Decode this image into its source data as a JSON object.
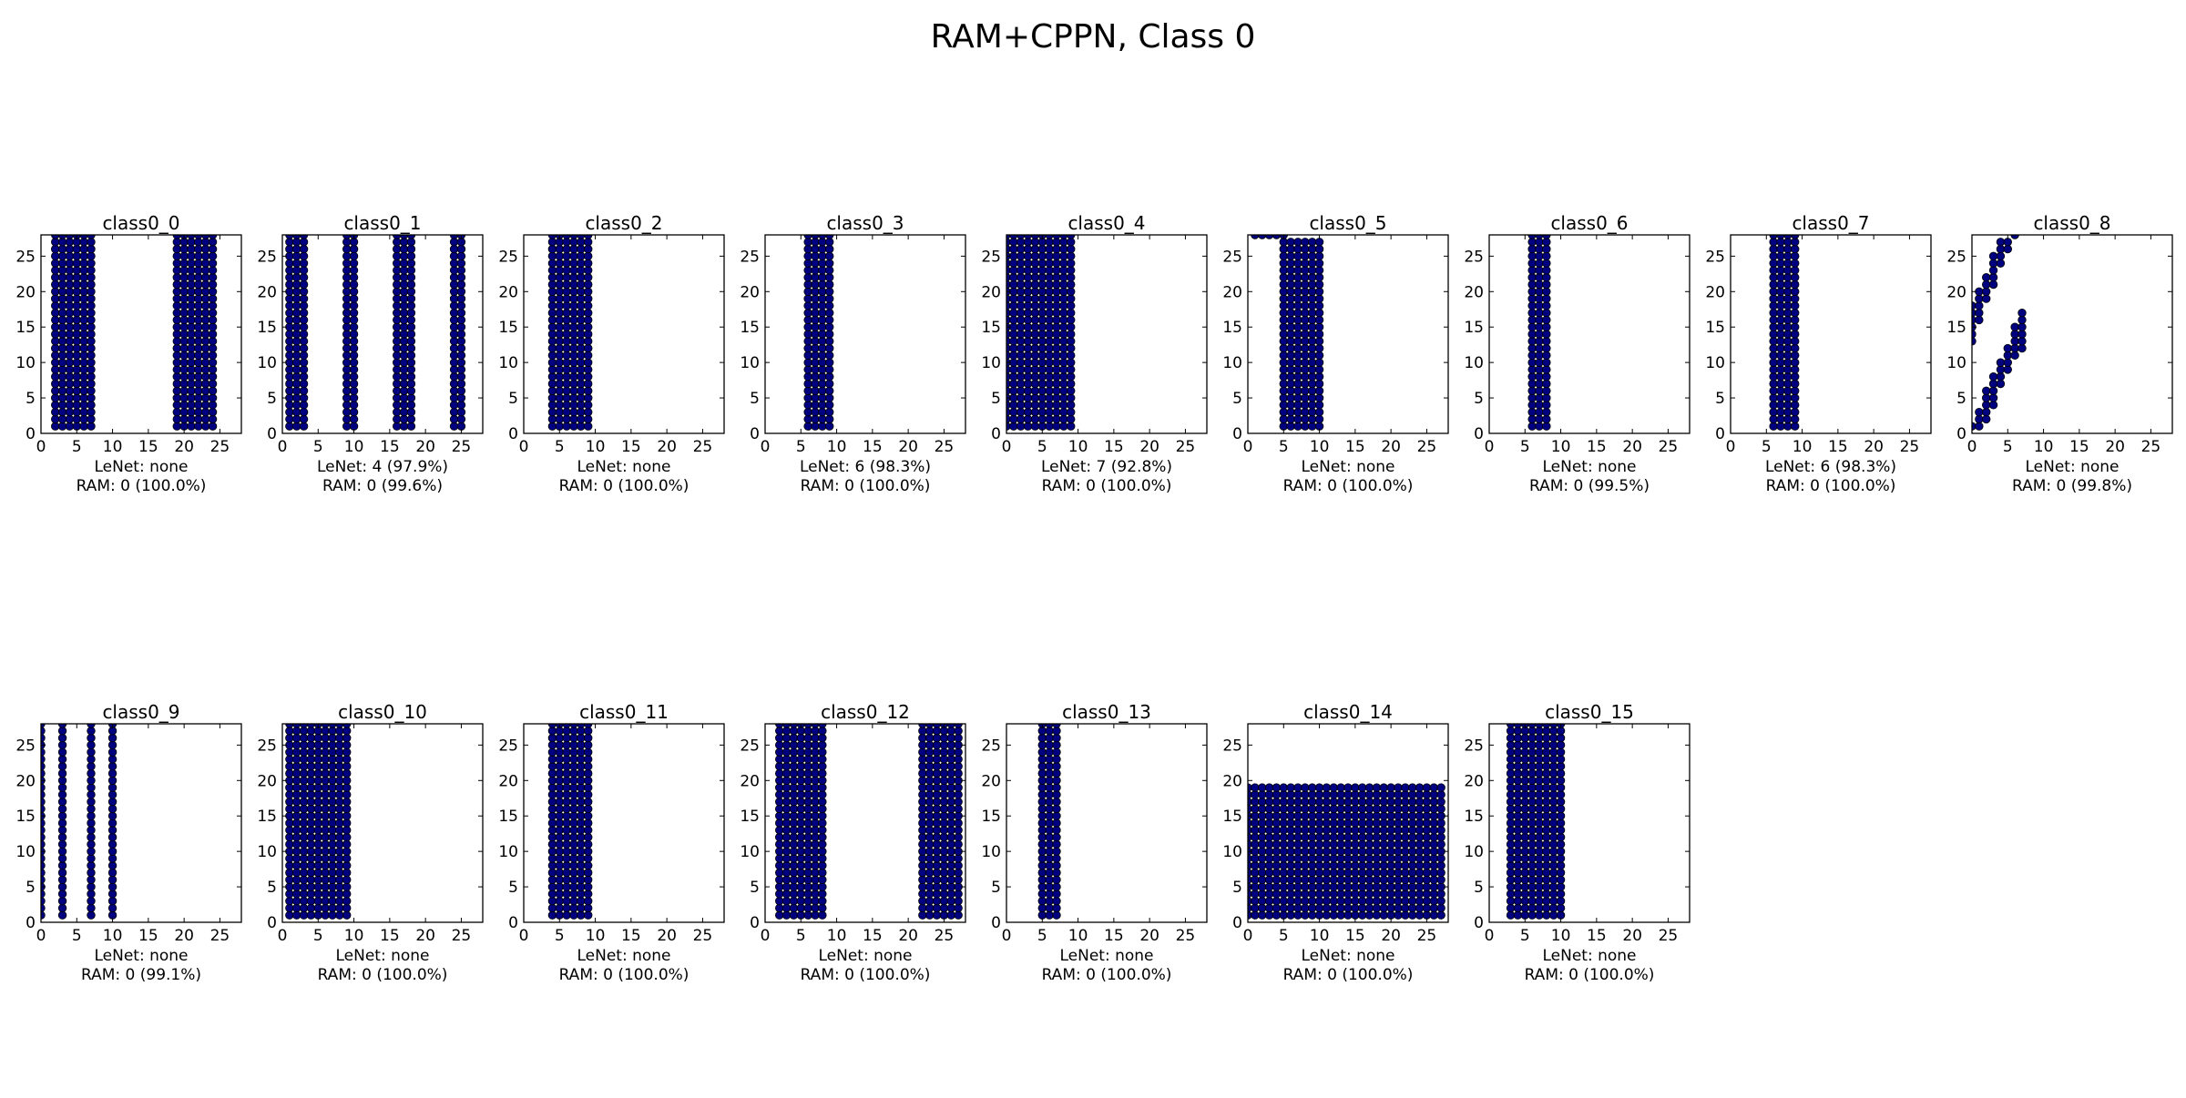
{
  "title": "RAM+CPPN, Class 0",
  "colors": {
    "marker": "#000080",
    "marker_edge": "#000000",
    "axes": "#000000",
    "background": "#ffffff"
  },
  "chart_data": [
    {
      "type": "scatter",
      "title": "class0_0",
      "lenet": "LeNet: none",
      "ram": "RAM: 0 (100.0%)",
      "xlim": [
        0,
        28
      ],
      "ylim": [
        0,
        28
      ],
      "xticks": [
        0,
        5,
        10,
        15,
        20,
        25
      ],
      "yticks": [
        0,
        5,
        10,
        15,
        20,
        25
      ],
      "grid": false,
      "x_ranges": [
        [
          2,
          7
        ],
        [
          19,
          24
        ]
      ],
      "y_range": [
        1,
        28
      ],
      "extra_points": []
    },
    {
      "type": "scatter",
      "title": "class0_1",
      "lenet": "LeNet: 4 (97.9%)",
      "ram": "RAM: 0 (99.6%)",
      "xlim": [
        0,
        28
      ],
      "ylim": [
        0,
        28
      ],
      "xticks": [
        0,
        5,
        10,
        15,
        20,
        25
      ],
      "yticks": [
        0,
        5,
        10,
        15,
        20,
        25
      ],
      "grid": false,
      "x_ranges": [
        [
          1,
          3
        ],
        [
          9,
          10
        ],
        [
          16,
          18
        ],
        [
          24,
          25
        ]
      ],
      "y_range": [
        1,
        28
      ],
      "extra_points": []
    },
    {
      "type": "scatter",
      "title": "class0_2",
      "lenet": "LeNet: none",
      "ram": "RAM: 0 (100.0%)",
      "xlim": [
        0,
        28
      ],
      "ylim": [
        0,
        28
      ],
      "xticks": [
        0,
        5,
        10,
        15,
        20,
        25
      ],
      "yticks": [
        0,
        5,
        10,
        15,
        20,
        25
      ],
      "grid": false,
      "x_ranges": [
        [
          4,
          9
        ]
      ],
      "y_range": [
        1,
        28
      ],
      "extra_points": []
    },
    {
      "type": "scatter",
      "title": "class0_3",
      "lenet": "LeNet: 6 (98.3%)",
      "ram": "RAM: 0 (100.0%)",
      "xlim": [
        0,
        28
      ],
      "ylim": [
        0,
        28
      ],
      "xticks": [
        0,
        5,
        10,
        15,
        20,
        25
      ],
      "yticks": [
        0,
        5,
        10,
        15,
        20,
        25
      ],
      "grid": false,
      "x_ranges": [
        [
          6,
          9
        ]
      ],
      "y_range": [
        1,
        28
      ],
      "extra_points": []
    },
    {
      "type": "scatter",
      "title": "class0_4",
      "lenet": "LeNet: 7 (92.8%)",
      "ram": "RAM: 0 (100.0%)",
      "xlim": [
        0,
        28
      ],
      "ylim": [
        0,
        28
      ],
      "xticks": [
        0,
        5,
        10,
        15,
        20,
        25
      ],
      "yticks": [
        0,
        5,
        10,
        15,
        20,
        25
      ],
      "grid": false,
      "x_ranges": [
        [
          0,
          9
        ]
      ],
      "y_range": [
        1,
        28
      ],
      "extra_points": []
    },
    {
      "type": "scatter",
      "title": "class0_5",
      "lenet": "LeNet: none",
      "ram": "RAM: 0 (100.0%)",
      "xlim": [
        0,
        28
      ],
      "ylim": [
        0,
        28
      ],
      "xticks": [
        0,
        5,
        10,
        15,
        20,
        25
      ],
      "yticks": [
        0,
        5,
        10,
        15,
        20,
        25
      ],
      "grid": false,
      "x_ranges": [
        [
          5,
          10
        ]
      ],
      "y_range": [
        1,
        27
      ],
      "extra_points": [
        [
          1,
          28
        ],
        [
          2,
          28
        ],
        [
          3,
          28
        ],
        [
          4,
          28
        ],
        [
          5,
          28
        ]
      ]
    },
    {
      "type": "scatter",
      "title": "class0_6",
      "lenet": "LeNet: none",
      "ram": "RAM: 0 (99.5%)",
      "xlim": [
        0,
        28
      ],
      "ylim": [
        0,
        28
      ],
      "xticks": [
        0,
        5,
        10,
        15,
        20,
        25
      ],
      "yticks": [
        0,
        5,
        10,
        15,
        20,
        25
      ],
      "grid": false,
      "x_ranges": [
        [
          6,
          8
        ]
      ],
      "y_range": [
        1,
        28
      ],
      "extra_points": []
    },
    {
      "type": "scatter",
      "title": "class0_7",
      "lenet": "LeNet: 6 (98.3%)",
      "ram": "RAM: 0 (100.0%)",
      "xlim": [
        0,
        28
      ],
      "ylim": [
        0,
        28
      ],
      "xticks": [
        0,
        5,
        10,
        15,
        20,
        25
      ],
      "yticks": [
        0,
        5,
        10,
        15,
        20,
        25
      ],
      "grid": false,
      "x_ranges": [
        [
          6,
          9
        ]
      ],
      "y_range": [
        1,
        28
      ],
      "extra_points": []
    },
    {
      "type": "scatter",
      "title": "class0_8",
      "lenet": "LeNet: none",
      "ram": "RAM: 0 (99.8%)",
      "xlim": [
        0,
        28
      ],
      "ylim": [
        0,
        28
      ],
      "xticks": [
        0,
        5,
        10,
        15,
        20,
        25
      ],
      "yticks": [
        0,
        5,
        10,
        15,
        20,
        25
      ],
      "grid": false,
      "x_ranges": [],
      "y_range": [
        1,
        28
      ],
      "extra_points": [
        [
          0,
          1
        ],
        [
          0,
          13
        ],
        [
          0,
          14
        ],
        [
          0,
          15
        ],
        [
          0,
          16
        ],
        [
          0,
          17
        ],
        [
          0,
          18
        ],
        [
          1,
          1
        ],
        [
          1,
          2
        ],
        [
          1,
          3
        ],
        [
          1,
          16
        ],
        [
          1,
          17
        ],
        [
          1,
          18
        ],
        [
          1,
          19
        ],
        [
          1,
          20
        ],
        [
          2,
          2
        ],
        [
          2,
          3
        ],
        [
          2,
          4
        ],
        [
          2,
          5
        ],
        [
          2,
          6
        ],
        [
          2,
          19
        ],
        [
          2,
          20
        ],
        [
          2,
          21
        ],
        [
          2,
          22
        ],
        [
          3,
          4
        ],
        [
          3,
          5
        ],
        [
          3,
          6
        ],
        [
          3,
          7
        ],
        [
          3,
          8
        ],
        [
          3,
          21
        ],
        [
          3,
          22
        ],
        [
          3,
          23
        ],
        [
          3,
          24
        ],
        [
          3,
          25
        ],
        [
          4,
          7
        ],
        [
          4,
          8
        ],
        [
          4,
          9
        ],
        [
          4,
          10
        ],
        [
          4,
          24
        ],
        [
          4,
          25
        ],
        [
          4,
          26
        ],
        [
          4,
          27
        ],
        [
          5,
          9
        ],
        [
          5,
          10
        ],
        [
          5,
          11
        ],
        [
          5,
          12
        ],
        [
          5,
          26
        ],
        [
          5,
          27
        ],
        [
          6,
          11
        ],
        [
          6,
          12
        ],
        [
          6,
          13
        ],
        [
          6,
          14
        ],
        [
          6,
          15
        ],
        [
          6,
          28
        ],
        [
          7,
          12
        ],
        [
          7,
          13
        ],
        [
          7,
          14
        ],
        [
          7,
          15
        ],
        [
          7,
          16
        ],
        [
          7,
          17
        ]
      ]
    },
    {
      "type": "scatter",
      "title": "class0_9",
      "lenet": "LeNet: none",
      "ram": "RAM: 0 (99.1%)",
      "xlim": [
        0,
        28
      ],
      "ylim": [
        0,
        28
      ],
      "xticks": [
        0,
        5,
        10,
        15,
        20,
        25
      ],
      "yticks": [
        0,
        5,
        10,
        15,
        20,
        25
      ],
      "grid": false,
      "x_ranges": [
        [
          0,
          0
        ],
        [
          3,
          3
        ],
        [
          7,
          7
        ],
        [
          10,
          10
        ]
      ],
      "y_range": [
        1,
        28
      ],
      "extra_points": []
    },
    {
      "type": "scatter",
      "title": "class0_10",
      "lenet": "LeNet: none",
      "ram": "RAM: 0 (100.0%)",
      "xlim": [
        0,
        28
      ],
      "ylim": [
        0,
        28
      ],
      "xticks": [
        0,
        5,
        10,
        15,
        20,
        25
      ],
      "yticks": [
        0,
        5,
        10,
        15,
        20,
        25
      ],
      "grid": false,
      "x_ranges": [
        [
          1,
          9
        ]
      ],
      "y_range": [
        1,
        28
      ],
      "extra_points": []
    },
    {
      "type": "scatter",
      "title": "class0_11",
      "lenet": "LeNet: none",
      "ram": "RAM: 0 (100.0%)",
      "xlim": [
        0,
        28
      ],
      "ylim": [
        0,
        28
      ],
      "xticks": [
        0,
        5,
        10,
        15,
        20,
        25
      ],
      "yticks": [
        0,
        5,
        10,
        15,
        20,
        25
      ],
      "grid": false,
      "x_ranges": [
        [
          4,
          9
        ]
      ],
      "y_range": [
        1,
        28
      ],
      "extra_points": []
    },
    {
      "type": "scatter",
      "title": "class0_12",
      "lenet": "LeNet: none",
      "ram": "RAM: 0 (100.0%)",
      "xlim": [
        0,
        28
      ],
      "ylim": [
        0,
        28
      ],
      "xticks": [
        0,
        5,
        10,
        15,
        20,
        25
      ],
      "yticks": [
        0,
        5,
        10,
        15,
        20,
        25
      ],
      "grid": false,
      "x_ranges": [
        [
          2,
          8
        ],
        [
          22,
          27
        ]
      ],
      "y_range": [
        1,
        28
      ],
      "extra_points": []
    },
    {
      "type": "scatter",
      "title": "class0_13",
      "lenet": "LeNet: none",
      "ram": "RAM: 0 (100.0%)",
      "xlim": [
        0,
        28
      ],
      "ylim": [
        0,
        28
      ],
      "xticks": [
        0,
        5,
        10,
        15,
        20,
        25
      ],
      "yticks": [
        0,
        5,
        10,
        15,
        20,
        25
      ],
      "grid": false,
      "x_ranges": [
        [
          5,
          7
        ]
      ],
      "y_range": [
        1,
        28
      ],
      "extra_points": []
    },
    {
      "type": "scatter",
      "title": "class0_14",
      "lenet": "LeNet: none",
      "ram": "RAM: 0 (100.0%)",
      "xlim": [
        0,
        28
      ],
      "ylim": [
        0,
        28
      ],
      "xticks": [
        0,
        5,
        10,
        15,
        20,
        25
      ],
      "yticks": [
        0,
        5,
        10,
        15,
        20,
        25
      ],
      "grid": false,
      "x_ranges": [
        [
          0,
          27
        ]
      ],
      "y_range": [
        1,
        19
      ],
      "extra_points": []
    },
    {
      "type": "scatter",
      "title": "class0_15",
      "lenet": "LeNet: none",
      "ram": "RAM: 0 (100.0%)",
      "xlim": [
        0,
        28
      ],
      "ylim": [
        0,
        28
      ],
      "xticks": [
        0,
        5,
        10,
        15,
        20,
        25
      ],
      "yticks": [
        0,
        5,
        10,
        15,
        20,
        25
      ],
      "grid": false,
      "x_ranges": [
        [
          3,
          10
        ]
      ],
      "y_range": [
        1,
        28
      ],
      "extra_points": []
    }
  ]
}
